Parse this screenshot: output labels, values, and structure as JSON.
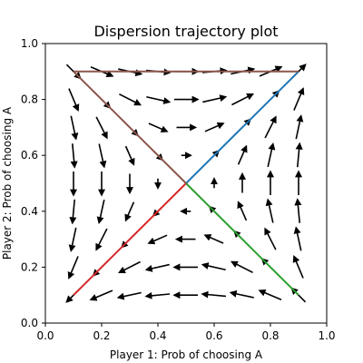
{
  "chart_data": {
    "type": "quiver",
    "title": "Dispersion trajectory plot",
    "xlabel": "Player 1: Prob of choosing A",
    "ylabel": "Player 2: Prob of choosing A",
    "xlim": [
      0.0,
      1.0
    ],
    "ylim": [
      0.0,
      1.0
    ],
    "xticks": [
      "0.0",
      "0.2",
      "0.4",
      "0.6",
      "0.8",
      "1.0"
    ],
    "yticks": [
      "0.0",
      "0.2",
      "0.4",
      "0.6",
      "0.8",
      "1.0"
    ],
    "grid": false,
    "vector_field": {
      "grid_values": [
        0.1,
        0.2,
        0.3,
        0.4,
        0.5,
        0.6,
        0.7,
        0.8,
        0.9
      ],
      "field": "dx = x(1-x)(2y-1), dy = y(1-y)(2x-1)",
      "color": "#000000"
    },
    "trajectories": [
      {
        "color": "#1f77b4",
        "points": [
          [
            0.5,
            0.5
          ],
          [
            0.6,
            0.6
          ],
          [
            0.7,
            0.7
          ],
          [
            0.8,
            0.8
          ],
          [
            0.9,
            0.9
          ]
        ]
      },
      {
        "color": "#2ca02c",
        "points": [
          [
            0.5,
            0.5
          ],
          [
            0.6,
            0.4
          ],
          [
            0.7,
            0.3
          ],
          [
            0.8,
            0.2
          ],
          [
            0.9,
            0.1
          ]
        ]
      },
      {
        "color": "#d62728",
        "points": [
          [
            0.1,
            0.1
          ],
          [
            0.2,
            0.2
          ],
          [
            0.3,
            0.3
          ],
          [
            0.4,
            0.4
          ],
          [
            0.5,
            0.5
          ]
        ]
      },
      {
        "color": "#8c564b",
        "points": [
          [
            0.1,
            0.9
          ],
          [
            0.2,
            0.8
          ],
          [
            0.3,
            0.7
          ],
          [
            0.4,
            0.6
          ],
          [
            0.5,
            0.5
          ]
        ]
      },
      {
        "color": "#8c564b",
        "points": [
          [
            0.1,
            0.9
          ],
          [
            0.3,
            0.9
          ],
          [
            0.5,
            0.9
          ],
          [
            0.7,
            0.9
          ],
          [
            0.9,
            0.9
          ]
        ]
      }
    ]
  }
}
